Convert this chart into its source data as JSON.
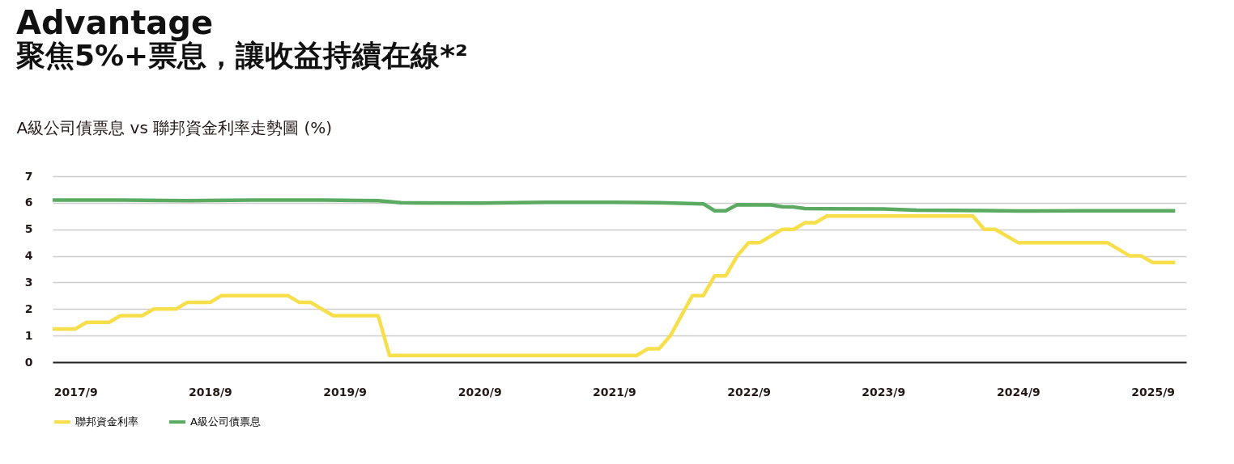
{
  "chart_data": {
    "type": "line",
    "title": "Advantage",
    "subtitle": "聚焦5%+票息，讓收益持續在線*²",
    "ylabel": "A級公司債票息 vs 聯邦資金利率走勢圖 (%)",
    "xlim": [
      "2017-07",
      "2025-12"
    ],
    "xticks": [
      {
        "value": "2017-09",
        "label": "2017/9"
      },
      {
        "value": "2018-09",
        "label": "2018/9"
      },
      {
        "value": "2019-09",
        "label": "2019/9"
      },
      {
        "value": "2020-09",
        "label": "2020/9"
      },
      {
        "value": "2021-09",
        "label": "2021/9"
      },
      {
        "value": "2022-09",
        "label": "2022/9"
      },
      {
        "value": "2023-09",
        "label": "2023/9"
      },
      {
        "value": "2024-09",
        "label": "2024/9"
      },
      {
        "value": "2025-09",
        "label": "2025/9"
      }
    ],
    "ylim": [
      0,
      7
    ],
    "yticks": [
      0,
      1,
      2,
      3,
      4,
      5,
      6,
      7
    ],
    "grid": "y",
    "legend": "bottom",
    "marker": "none",
    "line_style": "solid",
    "series": [
      {
        "name": "聯邦資金利率",
        "color": "#f7df4b",
        "x": [
          "2017-07",
          "2017-09",
          "2017-10",
          "2017-12",
          "2018-01",
          "2018-03",
          "2018-04",
          "2018-06",
          "2018-07",
          "2018-09",
          "2018-10",
          "2019-04",
          "2019-05",
          "2019-06",
          "2019-08",
          "2019-12",
          "2020-01",
          "2021-11",
          "2021-12",
          "2022-01",
          "2022-02",
          "2022-04",
          "2022-05",
          "2022-06",
          "2022-07",
          "2022-08",
          "2022-09",
          "2022-10",
          "2022-12",
          "2023-01",
          "2023-02",
          "2023-03",
          "2023-04",
          "2024-05",
          "2024-06",
          "2024-07",
          "2024-09",
          "2025-05",
          "2025-07",
          "2025-08",
          "2025-09",
          "2025-11"
        ],
        "values": [
          1.25,
          1.25,
          1.5,
          1.5,
          1.75,
          1.75,
          2.0,
          2.0,
          2.25,
          2.25,
          2.5,
          2.5,
          2.25,
          2.25,
          1.75,
          1.75,
          0.25,
          0.25,
          0.5,
          0.5,
          1.0,
          2.5,
          2.5,
          3.25,
          3.25,
          4.0,
          4.5,
          4.5,
          5.0,
          5.0,
          5.25,
          5.25,
          5.5,
          5.5,
          5.0,
          5.0,
          4.5,
          4.5,
          4.0,
          4.0,
          3.75,
          3.75
        ]
      },
      {
        "name": "A級公司債票息",
        "color": "#5aaa62",
        "x": [
          "2017-07",
          "2018-01",
          "2018-07",
          "2019-01",
          "2019-07",
          "2019-12",
          "2020-02",
          "2020-09",
          "2021-03",
          "2021-09",
          "2022-01",
          "2022-05",
          "2022-06",
          "2022-07",
          "2022-08",
          "2022-11",
          "2022-12",
          "2023-01",
          "2023-02",
          "2023-09",
          "2023-12",
          "2024-06",
          "2024-09",
          "2025-03",
          "2025-11"
        ],
        "values": [
          6.1,
          6.1,
          6.08,
          6.1,
          6.1,
          6.08,
          6.0,
          5.99,
          6.02,
          6.02,
          6.0,
          5.96,
          5.7,
          5.7,
          5.93,
          5.92,
          5.85,
          5.84,
          5.78,
          5.77,
          5.72,
          5.71,
          5.69,
          5.7,
          5.7
        ]
      }
    ]
  }
}
